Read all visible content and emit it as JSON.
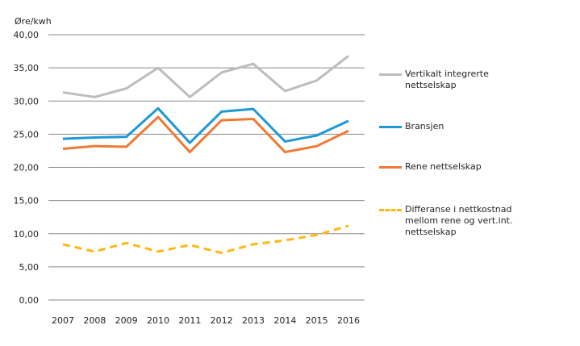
{
  "chart_data": {
    "type": "line",
    "ylabel": "Øre/kwh",
    "ylim": [
      0,
      40
    ],
    "yticks": [
      "0,00",
      "5,00",
      "10,00",
      "15,00",
      "20,00",
      "25,00",
      "30,00",
      "35,00",
      "40,00"
    ],
    "categories": [
      "2007",
      "2008",
      "2009",
      "2010",
      "2011",
      "2012",
      "2013",
      "2014",
      "2015",
      "2016"
    ],
    "grid": true,
    "legend": "right",
    "series": [
      {
        "name": "Vertikalt integrerte nettselskap",
        "color": "#bcbdc0",
        "dashed": false,
        "values": [
          31.3,
          30.6,
          31.9,
          35.0,
          30.6,
          34.3,
          35.6,
          31.5,
          33.1,
          36.8
        ]
      },
      {
        "name": "Bransjen",
        "color": "#1f98d6",
        "dashed": false,
        "values": [
          24.3,
          24.5,
          24.6,
          28.9,
          23.7,
          28.4,
          28.8,
          23.9,
          24.8,
          27.0
        ]
      },
      {
        "name": "Rene nettselskap",
        "color": "#ef7a34",
        "dashed": false,
        "values": [
          22.8,
          23.2,
          23.1,
          27.6,
          22.3,
          27.1,
          27.3,
          22.3,
          23.2,
          25.5
        ]
      },
      {
        "name": "Differanse i nettkostnad mellom rene og vert.int. nettselskap",
        "color": "#fdb913",
        "dashed": true,
        "values": [
          8.4,
          7.3,
          8.6,
          7.3,
          8.3,
          7.1,
          8.4,
          9.0,
          9.8,
          11.2
        ]
      }
    ]
  }
}
